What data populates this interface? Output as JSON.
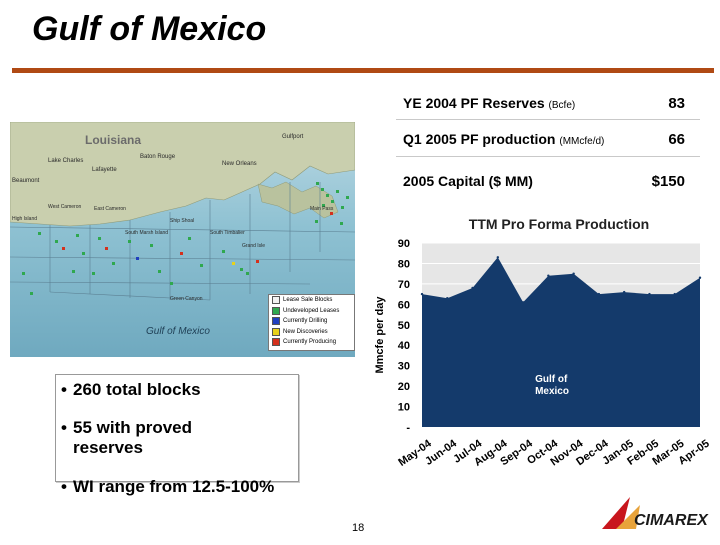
{
  "slide": {
    "title": "Gulf of Mexico",
    "page_number": "18"
  },
  "stats": [
    {
      "label": "YE 2004 PF Reserves",
      "unit": "(Bcfe)",
      "value": "83"
    },
    {
      "label": "Q1 2005 PF production",
      "unit": "(MMcfe/d)",
      "value": "66"
    },
    {
      "label": "2005 Capital ($ MM)",
      "unit": "",
      "value": "$150"
    }
  ],
  "map": {
    "labels": {
      "louisiana": "Louisiana",
      "gulf": "Gulf of Mexico",
      "lake_charles": "Lake Charles",
      "lafayette": "Lafayette",
      "baton_rouge": "Baton Rouge",
      "new_orleans": "New Orleans",
      "beaumont": "Beaumont",
      "gulfport": "Gulfport",
      "high_island": "High Island",
      "west_cameron": "West Cameron",
      "east_cameron": "East Cameron",
      "south_marsh_island": "South Marsh Island",
      "ship_shoal": "Ship Shoal",
      "south_timbalier": "South Timbalier",
      "grand_isle": "Grand Isle",
      "main_pass": "Main Pass",
      "green_canyon": "Green Canyon"
    },
    "legend": [
      {
        "label": "Lease Sale Blocks",
        "color": "#f2f2f2"
      },
      {
        "label": "Undeveloped Leases",
        "color": "#2fa84f"
      },
      {
        "label": "Currently Drilling",
        "color": "#1f3fbf"
      },
      {
        "label": "New Discoveries",
        "color": "#e8d21a"
      },
      {
        "label": "Currently Producing",
        "color": "#d4301c"
      }
    ]
  },
  "bullets": [
    {
      "text": "260 total blocks"
    },
    {
      "text": "55 with proved reserves"
    },
    {
      "text": "WI range from 12.5-100%"
    }
  ],
  "logo_text": "CIMAREX",
  "colors": {
    "title_rule": "#b04a14",
    "area_fill": "#143a6b",
    "plot_bg": "#e6e6e6",
    "gridline": "#ffffff",
    "logo_red": "#c8161d"
  },
  "chart_data": {
    "type": "area",
    "title": "TTM Pro Forma Production",
    "ylabel": "Mmcfe per day",
    "xlabel": "",
    "series_label": "Gulf of Mexico",
    "ylim": [
      0,
      90
    ],
    "yticks": [
      "-",
      "10",
      "20",
      "30",
      "40",
      "50",
      "60",
      "70",
      "80",
      "90"
    ],
    "categories": [
      "May-04",
      "Jun-04",
      "Jul-04",
      "Aug-04",
      "Sep-04",
      "Oct-04",
      "Nov-04",
      "Dec-04",
      "Jan-05",
      "Feb-05",
      "Mar-05",
      "Apr-05"
    ],
    "values": [
      65,
      63,
      68,
      83,
      61,
      74,
      75,
      65,
      66,
      65,
      65,
      73
    ],
    "grid": true
  }
}
